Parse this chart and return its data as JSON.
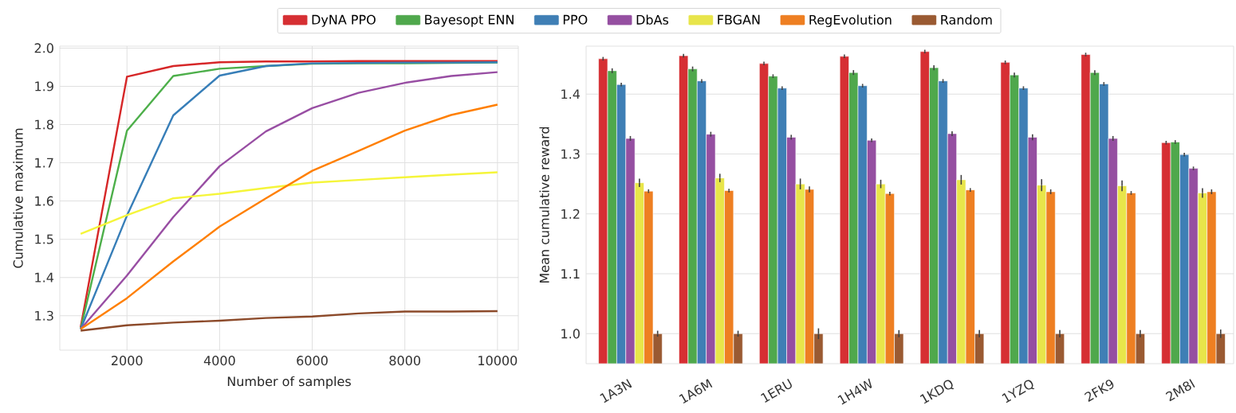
{
  "chart_data": [
    {
      "type": "line",
      "xlabel": "Number of samples",
      "ylabel": "Cumulative maximum",
      "x": [
        1000,
        2000,
        3000,
        4000,
        5000,
        6000,
        7000,
        8000,
        9000,
        10000
      ],
      "series": [
        {
          "color": "#d62728",
          "values": [
            1.27,
            1.925,
            1.953,
            1.963,
            1.965,
            1.965,
            1.966,
            1.966,
            1.966,
            1.966
          ]
        },
        {
          "color": "#4daf4a",
          "values": [
            1.265,
            1.784,
            1.927,
            1.946,
            1.953,
            1.959,
            1.96,
            1.96,
            1.961,
            1.962
          ]
        },
        {
          "color": "#377eb8",
          "values": [
            1.265,
            1.562,
            1.824,
            1.928,
            1.953,
            1.96,
            1.961,
            1.962,
            1.962,
            1.963
          ]
        },
        {
          "color": "#984ea3",
          "values": [
            1.265,
            1.405,
            1.558,
            1.691,
            1.782,
            1.843,
            1.883,
            1.909,
            1.927,
            1.937
          ]
        },
        {
          "color": "#f5f53a",
          "values": [
            1.514,
            1.563,
            1.607,
            1.619,
            1.634,
            1.648,
            1.655,
            1.662,
            1.669,
            1.675
          ]
        },
        {
          "color": "#ff7f00",
          "values": [
            1.265,
            1.346,
            1.442,
            1.533,
            1.607,
            1.679,
            1.731,
            1.784,
            1.825,
            1.852
          ]
        },
        {
          "color": "#8c4a2a",
          "values": [
            1.261,
            1.275,
            1.282,
            1.287,
            1.294,
            1.298,
            1.306,
            1.311,
            1.311,
            1.312
          ]
        }
      ],
      "xlim": [
        550,
        10450
      ],
      "ylim": [
        1.21,
        2.005
      ],
      "xticks": [
        2000,
        4000,
        6000,
        8000,
        10000
      ],
      "yticks": [
        {
          "value": 1.3,
          "label": "1.3"
        },
        {
          "value": 1.4,
          "label": "1.4"
        },
        {
          "value": 1.5,
          "label": "1.5"
        },
        {
          "value": 1.6,
          "label": "1.6"
        },
        {
          "value": 1.7,
          "label": "1.7"
        },
        {
          "value": 1.8,
          "label": "1.8"
        },
        {
          "value": 1.9,
          "label": "1.9"
        },
        {
          "value": 2.0,
          "label": "2.0"
        }
      ],
      "grid": true,
      "legend": false
    },
    {
      "type": "bar",
      "ylabel": "Mean cumulative reward",
      "categories": [
        "1A3N",
        "1A6M",
        "1ERU",
        "1H4W",
        "1KDQ",
        "1YZQ",
        "2FK9",
        "2M8I"
      ],
      "series": [
        {
          "name": "DyNA PPO",
          "color": "#d62f33",
          "values": [
            1.459,
            1.464,
            1.451,
            1.463,
            1.471,
            1.453,
            1.466,
            1.319
          ],
          "errors": [
            0.003,
            0.003,
            0.003,
            0.003,
            0.003,
            0.003,
            0.003,
            0.003
          ]
        },
        {
          "name": "Bayesopt ENN",
          "color": "#4fa84c",
          "values": [
            1.439,
            1.442,
            1.43,
            1.436,
            1.444,
            1.432,
            1.436,
            1.32
          ],
          "errors": [
            0.004,
            0.004,
            0.003,
            0.004,
            0.004,
            0.004,
            0.004,
            0.003
          ]
        },
        {
          "name": "PPO",
          "color": "#3f7fb5",
          "values": [
            1.416,
            1.422,
            1.41,
            1.414,
            1.422,
            1.41,
            1.417,
            1.299
          ],
          "errors": [
            0.003,
            0.003,
            0.003,
            0.003,
            0.003,
            0.003,
            0.003,
            0.003
          ]
        },
        {
          "name": "DbAs",
          "color": "#954fa1",
          "values": [
            1.326,
            1.333,
            1.328,
            1.323,
            1.334,
            1.328,
            1.326,
            1.276
          ],
          "errors": [
            0.004,
            0.004,
            0.004,
            0.003,
            0.004,
            0.005,
            0.004,
            0.003
          ]
        },
        {
          "name": "FBGAN",
          "color": "#e8e54a",
          "values": [
            1.252,
            1.26,
            1.25,
            1.25,
            1.257,
            1.248,
            1.247,
            1.235
          ],
          "errors": [
            0.007,
            0.007,
            0.009,
            0.007,
            0.008,
            0.01,
            0.009,
            0.008
          ]
        },
        {
          "name": "RegEvolution",
          "color": "#ee7f22",
          "values": [
            1.238,
            1.239,
            1.241,
            1.234,
            1.24,
            1.237,
            1.235,
            1.237
          ],
          "errors": [
            0.003,
            0.003,
            0.005,
            0.003,
            0.003,
            0.004,
            0.003,
            0.004
          ]
        },
        {
          "name": "Random",
          "color": "#9a5a32",
          "values": [
            1.0,
            1.0,
            1.0,
            1.0,
            1.0,
            1.0,
            1.0,
            1.0
          ],
          "errors": [
            0.005,
            0.005,
            0.009,
            0.006,
            0.006,
            0.006,
            0.006,
            0.007
          ]
        }
      ],
      "ylim": [
        0.95,
        1.48
      ],
      "yticks": [
        {
          "value": 1.0,
          "label": "1.0"
        },
        {
          "value": 1.1,
          "label": "1.1"
        },
        {
          "value": 1.2,
          "label": "1.2"
        },
        {
          "value": 1.3,
          "label": "1.3"
        },
        {
          "value": 1.4,
          "label": "1.4"
        }
      ],
      "grid": "y",
      "legend": "top"
    }
  ]
}
